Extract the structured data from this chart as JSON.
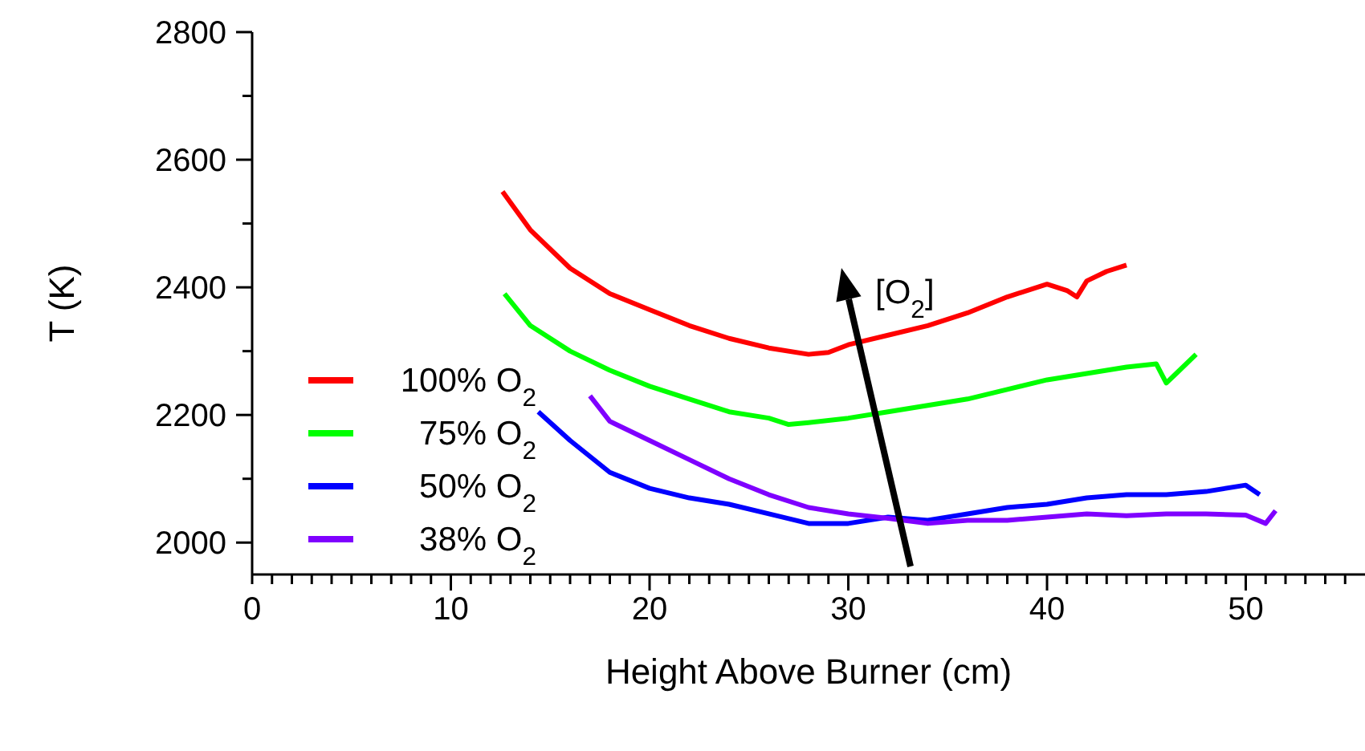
{
  "chart_data": {
    "type": "line",
    "xlabel": "Height Above Burner (cm)",
    "ylabel": "T (K)",
    "xlim": [
      0,
      56
    ],
    "xticks": [
      0,
      {
        "value": 1,
        "label": null
      },
      {
        "value": 2,
        "label": null
      },
      {
        "value": 3,
        "label": null
      },
      {
        "value": 4,
        "label": null
      },
      {
        "value": 5,
        "label": null
      },
      {
        "value": 6,
        "label": null
      },
      {
        "value": 7,
        "label": null
      },
      {
        "value": 8,
        "label": null
      },
      {
        "value": 9,
        "label": null
      },
      10,
      {
        "value": 11,
        "label": null
      },
      {
        "value": 12,
        "label": null
      },
      {
        "value": 13,
        "label": null
      },
      {
        "value": 14,
        "label": null
      },
      {
        "value": 15,
        "label": null
      },
      {
        "value": 16,
        "label": null
      },
      {
        "value": 17,
        "label": null
      },
      {
        "value": 18,
        "label": null
      },
      {
        "value": 19,
        "label": null
      },
      20,
      {
        "value": 21,
        "label": null
      },
      {
        "value": 22,
        "label": null
      },
      {
        "value": 23,
        "label": null
      },
      {
        "value": 24,
        "label": null
      },
      {
        "value": 25,
        "label": null
      },
      {
        "value": 26,
        "label": null
      },
      {
        "value": 27,
        "label": null
      },
      {
        "value": 28,
        "label": null
      },
      {
        "value": 29,
        "label": null
      },
      30,
      {
        "value": 31,
        "label": null
      },
      {
        "value": 32,
        "label": null
      },
      {
        "value": 33,
        "label": null
      },
      {
        "value": 34,
        "label": null
      },
      {
        "value": 35,
        "label": null
      },
      {
        "value": 36,
        "label": null
      },
      {
        "value": 37,
        "label": null
      },
      {
        "value": 38,
        "label": null
      },
      {
        "value": 39,
        "label": null
      },
      40,
      {
        "value": 41,
        "label": null
      },
      {
        "value": 42,
        "label": null
      },
      {
        "value": 43,
        "label": null
      },
      {
        "value": 44,
        "label": null
      },
      {
        "value": 45,
        "label": null
      },
      {
        "value": 46,
        "label": null
      },
      {
        "value": 47,
        "label": null
      },
      {
        "value": 48,
        "label": null
      },
      {
        "value": 49,
        "label": null
      },
      50,
      {
        "value": 51,
        "label": null
      },
      {
        "value": 52,
        "label": null
      },
      {
        "value": 53,
        "label": null
      },
      {
        "value": 54,
        "label": null
      },
      {
        "value": 55,
        "label": null
      }
    ],
    "ylim": [
      1950,
      2800
    ],
    "yticks": [
      2000,
      {
        "value": 2100,
        "label": null
      },
      2200,
      {
        "value": 2300,
        "label": null
      },
      2400,
      {
        "value": 2500,
        "label": null
      },
      2600,
      {
        "value": 2700,
        "label": null
      },
      2800
    ],
    "grid": false,
    "legend": "left",
    "marker": "none",
    "line_style": "solid",
    "annotations": [
      "[O$_{2}$]"
    ],
    "series": [
      {
        "name": "100% O$_{2}$",
        "color": "#ff0000",
        "x": [
          12.6,
          14,
          16,
          18,
          20,
          22,
          24,
          26,
          28,
          29,
          30,
          32,
          34,
          36,
          38,
          40,
          41,
          41.5,
          42,
          43,
          44
        ],
        "values": [
          2550,
          2490,
          2430,
          2390,
          2365,
          2340,
          2320,
          2305,
          2295,
          2298,
          2310,
          2325,
          2340,
          2360,
          2385,
          2405,
          2395,
          2385,
          2410,
          2425,
          2435
        ]
      },
      {
        "name": "75% O$_{2}$",
        "color": "#00ff00",
        "x": [
          12.7,
          14,
          16,
          18,
          20,
          22,
          24,
          26,
          27,
          28,
          30,
          32,
          34,
          36,
          38,
          40,
          42,
          44,
          45.5,
          46,
          46.5,
          47.5
        ],
        "values": [
          2390,
          2340,
          2300,
          2270,
          2245,
          2225,
          2205,
          2195,
          2185,
          2188,
          2195,
          2205,
          2215,
          2225,
          2240,
          2255,
          2265,
          2275,
          2280,
          2250,
          2265,
          2295
        ]
      },
      {
        "name": "50% O$_{2}$",
        "color": "#0000ff",
        "x": [
          14.4,
          16,
          18,
          20,
          22,
          24,
          26,
          28,
          30,
          32,
          34,
          36,
          38,
          40,
          42,
          44,
          46,
          48,
          50,
          50.7
        ],
        "values": [
          2205,
          2160,
          2110,
          2085,
          2070,
          2060,
          2045,
          2030,
          2030,
          2040,
          2035,
          2045,
          2055,
          2060,
          2070,
          2075,
          2075,
          2080,
          2090,
          2075
        ]
      },
      {
        "name": "38% O$_{2}$",
        "color": "#7f00ff",
        "x": [
          17,
          18,
          20,
          22,
          24,
          26,
          28,
          30,
          32,
          34,
          36,
          38,
          40,
          42,
          44,
          46,
          48,
          50,
          51,
          51.5
        ],
        "values": [
          2230,
          2190,
          2160,
          2130,
          2100,
          2075,
          2055,
          2045,
          2038,
          2030,
          2035,
          2035,
          2040,
          2045,
          2042,
          2045,
          2045,
          2043,
          2030,
          2050
        ]
      }
    ]
  }
}
